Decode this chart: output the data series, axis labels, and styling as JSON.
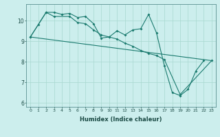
{
  "xlabel": "Humidex (Indice chaleur)",
  "bg_color": "#cceeed",
  "line_color": "#1a7a6e",
  "grid_color": "#a8d8d0",
  "xlim": [
    -0.5,
    23.5
  ],
  "ylim": [
    5.8,
    10.8
  ],
  "xticks": [
    0,
    1,
    2,
    3,
    4,
    5,
    6,
    7,
    8,
    9,
    10,
    11,
    12,
    13,
    14,
    15,
    16,
    17,
    18,
    19,
    20,
    21,
    22,
    23
  ],
  "yticks": [
    6,
    7,
    8,
    9,
    10
  ],
  "line1_x": [
    0,
    1,
    2,
    3,
    4,
    5,
    6,
    7,
    8,
    9,
    10,
    11,
    12,
    13,
    14,
    15,
    16,
    17,
    18,
    19,
    20,
    21,
    22
  ],
  "line1_y": [
    9.2,
    9.8,
    10.4,
    10.4,
    10.3,
    10.35,
    10.15,
    10.2,
    9.85,
    9.15,
    9.2,
    9.5,
    9.3,
    9.55,
    9.6,
    10.3,
    9.4,
    7.8,
    6.5,
    6.35,
    6.65,
    7.55,
    8.05
  ],
  "line2_x": [
    0,
    2,
    3,
    5,
    6,
    7,
    8,
    9,
    10,
    11,
    12,
    13,
    14,
    15,
    16,
    17,
    19,
    23
  ],
  "line2_y": [
    9.2,
    10.4,
    10.2,
    10.2,
    9.9,
    9.85,
    9.55,
    9.3,
    9.2,
    9.1,
    8.9,
    8.75,
    8.55,
    8.4,
    8.3,
    8.1,
    6.4,
    8.05
  ],
  "line3_x": [
    0,
    23
  ],
  "line3_y": [
    9.2,
    8.05
  ]
}
